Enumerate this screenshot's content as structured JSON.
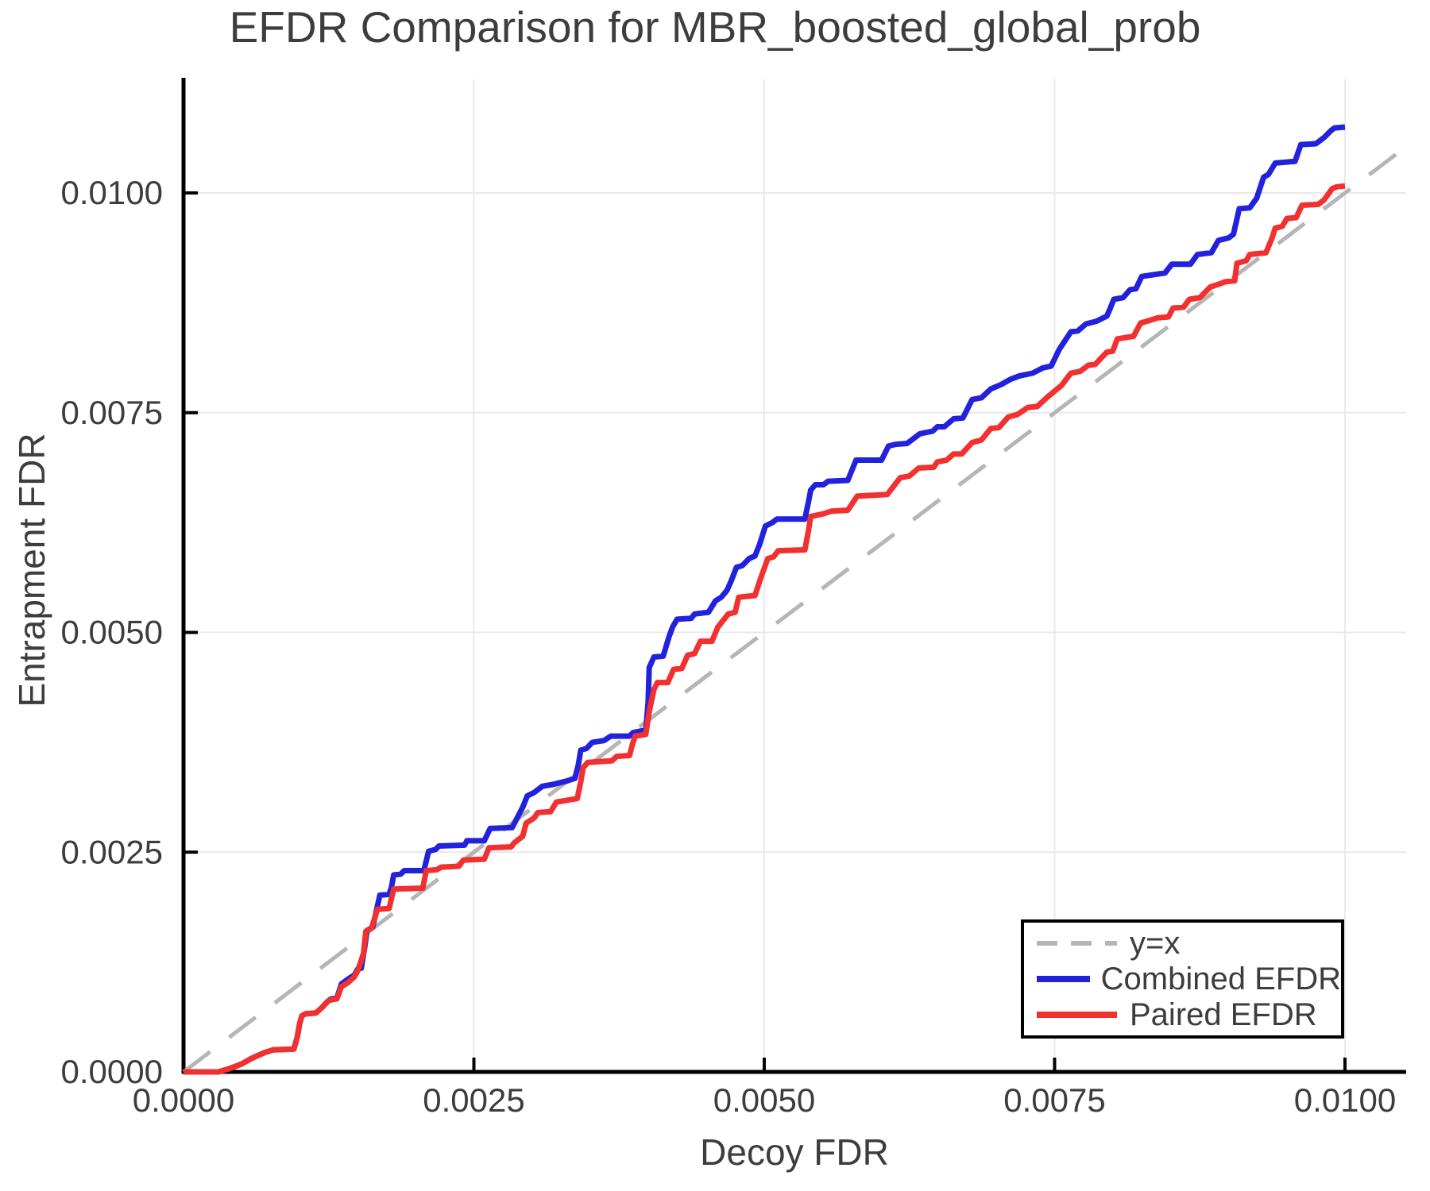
{
  "title": "EFDR Comparison for MBR_boosted_global_prob",
  "x_axis": {
    "label": "Decoy FDR",
    "tick_labels": [
      "0.0000",
      "0.0025",
      "0.0050",
      "0.0075",
      "0.0100"
    ],
    "tick_values": [
      0,
      0.0025,
      0.005,
      0.0075,
      0.01
    ],
    "range": [
      0,
      0.010527
    ]
  },
  "y_axis": {
    "label": "Entrapment FDR",
    "tick_labels": [
      "0.0000",
      "0.0025",
      "0.0050",
      "0.0075",
      "0.0100"
    ],
    "tick_values": [
      0,
      0.0025,
      0.005,
      0.0075,
      0.01
    ],
    "range": [
      0,
      0.011292
    ]
  },
  "legend": {
    "position": "bottom-right"
  },
  "colors": {
    "identity_line": "#b5b5b5",
    "combined_efdr": "#2222dd",
    "paired_efdr": "#f23030",
    "text": "#3d3d3d",
    "spine": "#000000",
    "grid": "#e9e9e9"
  },
  "chart_data": {
    "type": "line",
    "title": "EFDR Comparison for MBR_boosted_global_prob",
    "xlabel": "Decoy FDR",
    "ylabel": "Entrapment FDR",
    "xlim": [
      0,
      0.010527
    ],
    "ylim": [
      0,
      0.011292
    ],
    "grid": true,
    "legend_position": "bottom-right",
    "series": [
      {
        "name": "y=x",
        "color": "#b5b5b5",
        "dash": true,
        "points": [
          [
            0,
            0
          ],
          [
            0.010527,
            0.010527
          ]
        ]
      },
      {
        "name": "Combined EFDR",
        "color": "#2222dd",
        "dash": false,
        "points": [
          [
            0,
            0
          ],
          [
            0.0003,
            0
          ],
          [
            0.0004,
            4e-05
          ],
          [
            0.0005,
            9e-05
          ],
          [
            0.00058,
            0.00015
          ],
          [
            0.00063,
            0.00018
          ],
          [
            0.0007,
            0.00022
          ],
          [
            0.00077,
            0.00025
          ],
          [
            0.00095,
            0.00026
          ],
          [
            0.00098,
            0.0004
          ],
          [
            0.001,
            0.00055
          ],
          [
            0.00102,
            0.00064
          ],
          [
            0.00105,
            0.00066
          ],
          [
            0.00114,
            0.00067
          ],
          [
            0.00119,
            0.00073
          ],
          [
            0.00124,
            0.0008
          ],
          [
            0.00127,
            0.00083
          ],
          [
            0.00132,
            0.00084
          ],
          [
            0.00136,
            0.001
          ],
          [
            0.00142,
            0.00106
          ],
          [
            0.00147,
            0.0011
          ],
          [
            0.0015,
            0.00117
          ],
          [
            0.00153,
            0.00118
          ],
          [
            0.00156,
            0.00142
          ],
          [
            0.00158,
            0.00161
          ],
          [
            0.00163,
            0.00165
          ],
          [
            0.00169,
            0.00201
          ],
          [
            0.00177,
            0.00202
          ],
          [
            0.00179,
            0.0021
          ],
          [
            0.00181,
            0.00224
          ],
          [
            0.00187,
            0.00225
          ],
          [
            0.0019,
            0.00229
          ],
          [
            0.00207,
            0.00229
          ],
          [
            0.00211,
            0.00251
          ],
          [
            0.00217,
            0.00253
          ],
          [
            0.0022,
            0.00257
          ],
          [
            0.00242,
            0.00258
          ],
          [
            0.00244,
            0.00263
          ],
          [
            0.00259,
            0.00263
          ],
          [
            0.00264,
            0.00277
          ],
          [
            0.00283,
            0.00278
          ],
          [
            0.00292,
            0.00301
          ],
          [
            0.00296,
            0.00314
          ],
          [
            0.00302,
            0.00318
          ],
          [
            0.00309,
            0.00325
          ],
          [
            0.00318,
            0.00327
          ],
          [
            0.0033,
            0.00331
          ],
          [
            0.00337,
            0.00334
          ],
          [
            0.0034,
            0.0035
          ],
          [
            0.00342,
            0.00366
          ],
          [
            0.00347,
            0.00368
          ],
          [
            0.00352,
            0.00375
          ],
          [
            0.00362,
            0.00377
          ],
          [
            0.00368,
            0.00382
          ],
          [
            0.00384,
            0.00382
          ],
          [
            0.00387,
            0.00386
          ],
          [
            0.00398,
            0.00389
          ],
          [
            0.004,
            0.0042
          ],
          [
            0.00401,
            0.0046
          ],
          [
            0.00405,
            0.00472
          ],
          [
            0.00413,
            0.00473
          ],
          [
            0.00418,
            0.00495
          ],
          [
            0.00421,
            0.00506
          ],
          [
            0.00425,
            0.00515
          ],
          [
            0.00437,
            0.00516
          ],
          [
            0.0044,
            0.00521
          ],
          [
            0.00452,
            0.00523
          ],
          [
            0.00458,
            0.00536
          ],
          [
            0.00463,
            0.0054
          ],
          [
            0.00468,
            0.00548
          ],
          [
            0.00472,
            0.0056
          ],
          [
            0.00476,
            0.00574
          ],
          [
            0.00481,
            0.00576
          ],
          [
            0.00487,
            0.00584
          ],
          [
            0.00492,
            0.00587
          ],
          [
            0.00496,
            0.006
          ],
          [
            0.00501,
            0.00621
          ],
          [
            0.00507,
            0.00625
          ],
          [
            0.00511,
            0.00629
          ],
          [
            0.00535,
            0.00629
          ],
          [
            0.00538,
            0.00648
          ],
          [
            0.0054,
            0.00662
          ],
          [
            0.00544,
            0.00668
          ],
          [
            0.00551,
            0.00668
          ],
          [
            0.00555,
            0.00672
          ],
          [
            0.00572,
            0.00673
          ],
          [
            0.00579,
            0.00696
          ],
          [
            0.00601,
            0.00696
          ],
          [
            0.00607,
            0.00712
          ],
          [
            0.00613,
            0.00714
          ],
          [
            0.00623,
            0.00715
          ],
          [
            0.00634,
            0.00726
          ],
          [
            0.00645,
            0.00729
          ],
          [
            0.00649,
            0.00734
          ],
          [
            0.00655,
            0.00734
          ],
          [
            0.00663,
            0.00743
          ],
          [
            0.00671,
            0.00744
          ],
          [
            0.00679,
            0.00765
          ],
          [
            0.00687,
            0.00767
          ],
          [
            0.00695,
            0.00777
          ],
          [
            0.00704,
            0.00782
          ],
          [
            0.00712,
            0.00788
          ],
          [
            0.0072,
            0.00792
          ],
          [
            0.00731,
            0.00795
          ],
          [
            0.0074,
            0.00801
          ],
          [
            0.00747,
            0.00803
          ],
          [
            0.00754,
            0.00822
          ],
          [
            0.00764,
            0.00842
          ],
          [
            0.0077,
            0.00843
          ],
          [
            0.00777,
            0.00851
          ],
          [
            0.00786,
            0.00854
          ],
          [
            0.00795,
            0.0086
          ],
          [
            0.00798,
            0.00869
          ],
          [
            0.00801,
            0.00879
          ],
          [
            0.00809,
            0.00881
          ],
          [
            0.00815,
            0.0089
          ],
          [
            0.0082,
            0.00891
          ],
          [
            0.00825,
            0.00905
          ],
          [
            0.00845,
            0.00909
          ],
          [
            0.00851,
            0.00919
          ],
          [
            0.00867,
            0.00919
          ],
          [
            0.00873,
            0.0093
          ],
          [
            0.00885,
            0.00932
          ],
          [
            0.00891,
            0.00946
          ],
          [
            0.009,
            0.00949
          ],
          [
            0.00904,
            0.00953
          ],
          [
            0.00909,
            0.00982
          ],
          [
            0.00918,
            0.00983
          ],
          [
            0.00924,
            0.00994
          ],
          [
            0.0093,
            0.01018
          ],
          [
            0.00934,
            0.01021
          ],
          [
            0.0094,
            0.01034
          ],
          [
            0.00957,
            0.01036
          ],
          [
            0.00962,
            0.01055
          ],
          [
            0.00975,
            0.01056
          ],
          [
            0.00982,
            0.01063
          ],
          [
            0.00988,
            0.01071
          ],
          [
            0.00991,
            0.01074
          ],
          [
            0.01,
            0.01075
          ]
        ]
      },
      {
        "name": "Paired EFDR",
        "color": "#f23030",
        "dash": false,
        "points": [
          [
            0,
            0
          ],
          [
            0.0003,
            0
          ],
          [
            0.0004,
            4e-05
          ],
          [
            0.0005,
            9e-05
          ],
          [
            0.00058,
            0.00015
          ],
          [
            0.00063,
            0.00018
          ],
          [
            0.0007,
            0.00022
          ],
          [
            0.00077,
            0.00025
          ],
          [
            0.00095,
            0.00026
          ],
          [
            0.00098,
            0.0004
          ],
          [
            0.001,
            0.00055
          ],
          [
            0.00102,
            0.00064
          ],
          [
            0.00105,
            0.00066
          ],
          [
            0.00114,
            0.00067
          ],
          [
            0.00119,
            0.00073
          ],
          [
            0.00124,
            0.0008
          ],
          [
            0.00127,
            0.00082
          ],
          [
            0.00132,
            0.00083
          ],
          [
            0.00136,
            0.00097
          ],
          [
            0.00142,
            0.00102
          ],
          [
            0.00147,
            0.00108
          ],
          [
            0.0015,
            0.00115
          ],
          [
            0.00155,
            0.00135
          ],
          [
            0.00157,
            0.0016
          ],
          [
            0.00162,
            0.00164
          ],
          [
            0.00167,
            0.00185
          ],
          [
            0.00177,
            0.00186
          ],
          [
            0.00181,
            0.00208
          ],
          [
            0.00206,
            0.00209
          ],
          [
            0.00209,
            0.00229
          ],
          [
            0.00218,
            0.0023
          ],
          [
            0.00222,
            0.00233
          ],
          [
            0.00237,
            0.00234
          ],
          [
            0.00241,
            0.00241
          ],
          [
            0.00259,
            0.00242
          ],
          [
            0.00263,
            0.00255
          ],
          [
            0.00282,
            0.00256
          ],
          [
            0.00285,
            0.00261
          ],
          [
            0.00292,
            0.00268
          ],
          [
            0.00295,
            0.00283
          ],
          [
            0.00302,
            0.00289
          ],
          [
            0.00305,
            0.00295
          ],
          [
            0.00316,
            0.00296
          ],
          [
            0.00321,
            0.00307
          ],
          [
            0.00339,
            0.00311
          ],
          [
            0.00342,
            0.0033
          ],
          [
            0.00344,
            0.00346
          ],
          [
            0.00348,
            0.00352
          ],
          [
            0.00369,
            0.00354
          ],
          [
            0.00373,
            0.00359
          ],
          [
            0.00384,
            0.0036
          ],
          [
            0.00387,
            0.00375
          ],
          [
            0.00389,
            0.00382
          ],
          [
            0.00398,
            0.00384
          ],
          [
            0.00401,
            0.0041
          ],
          [
            0.00405,
            0.00435
          ],
          [
            0.00408,
            0.00443
          ],
          [
            0.00417,
            0.00443
          ],
          [
            0.00422,
            0.00458
          ],
          [
            0.00429,
            0.00459
          ],
          [
            0.00434,
            0.00474
          ],
          [
            0.0044,
            0.00476
          ],
          [
            0.00445,
            0.0049
          ],
          [
            0.00455,
            0.0049
          ],
          [
            0.0046,
            0.00506
          ],
          [
            0.00469,
            0.00521
          ],
          [
            0.00475,
            0.00523
          ],
          [
            0.00478,
            0.0054
          ],
          [
            0.00492,
            0.00542
          ],
          [
            0.00497,
            0.00562
          ],
          [
            0.00503,
            0.00584
          ],
          [
            0.00508,
            0.00586
          ],
          [
            0.00512,
            0.00593
          ],
          [
            0.00535,
            0.00594
          ],
          [
            0.00538,
            0.00615
          ],
          [
            0.0054,
            0.00632
          ],
          [
            0.00551,
            0.00635
          ],
          [
            0.00558,
            0.00638
          ],
          [
            0.00572,
            0.00639
          ],
          [
            0.0058,
            0.00655
          ],
          [
            0.00606,
            0.00657
          ],
          [
            0.00617,
            0.00676
          ],
          [
            0.00625,
            0.00678
          ],
          [
            0.00633,
            0.00687
          ],
          [
            0.00646,
            0.00688
          ],
          [
            0.00649,
            0.00694
          ],
          [
            0.00657,
            0.00696
          ],
          [
            0.00663,
            0.00703
          ],
          [
            0.0067,
            0.00703
          ],
          [
            0.00679,
            0.00716
          ],
          [
            0.00687,
            0.00719
          ],
          [
            0.00695,
            0.00732
          ],
          [
            0.00702,
            0.00733
          ],
          [
            0.0071,
            0.00745
          ],
          [
            0.00718,
            0.00748
          ],
          [
            0.00727,
            0.00756
          ],
          [
            0.00735,
            0.00757
          ],
          [
            0.00744,
            0.00768
          ],
          [
            0.00756,
            0.00781
          ],
          [
            0.00764,
            0.00795
          ],
          [
            0.00772,
            0.00797
          ],
          [
            0.00779,
            0.00804
          ],
          [
            0.00785,
            0.00805
          ],
          [
            0.00795,
            0.00819
          ],
          [
            0.008,
            0.0082
          ],
          [
            0.00804,
            0.00834
          ],
          [
            0.00818,
            0.00837
          ],
          [
            0.00824,
            0.00852
          ],
          [
            0.00832,
            0.00855
          ],
          [
            0.00839,
            0.00858
          ],
          [
            0.00848,
            0.00859
          ],
          [
            0.00852,
            0.00869
          ],
          [
            0.00861,
            0.0087
          ],
          [
            0.00866,
            0.00879
          ],
          [
            0.00875,
            0.00881
          ],
          [
            0.00884,
            0.00893
          ],
          [
            0.00891,
            0.00896
          ],
          [
            0.00897,
            0.00899
          ],
          [
            0.00905,
            0.009
          ],
          [
            0.00907,
            0.0092
          ],
          [
            0.00915,
            0.00923
          ],
          [
            0.00918,
            0.0093
          ],
          [
            0.00932,
            0.00932
          ],
          [
            0.00937,
            0.00948
          ],
          [
            0.0094,
            0.0096
          ],
          [
            0.00946,
            0.00962
          ],
          [
            0.0095,
            0.00971
          ],
          [
            0.00958,
            0.00972
          ],
          [
            0.00963,
            0.00986
          ],
          [
            0.00977,
            0.00987
          ],
          [
            0.00982,
            0.00992
          ],
          [
            0.00989,
            0.01005
          ],
          [
            0.00993,
            0.01007
          ],
          [
            0.01,
            0.01008
          ]
        ]
      }
    ]
  }
}
